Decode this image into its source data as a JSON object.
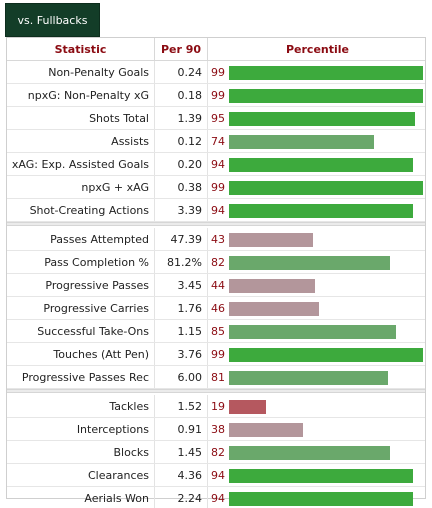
{
  "tab": {
    "label": "vs. Fullbacks"
  },
  "headers": {
    "statistic": "Statistic",
    "per90": "Per 90",
    "percentile": "Percentile"
  },
  "colors": {
    "high": "#3daa3d",
    "mid": "#6aa86b",
    "low": "#b3969b",
    "verylow": "#b5585f",
    "header_text": "#8b0b12",
    "tab_bg": "#133d28"
  },
  "groups": [
    {
      "rows": [
        {
          "stat": "Non-Penalty Goals",
          "per90": "0.24",
          "pct": "99",
          "value": 99,
          "level": "high"
        },
        {
          "stat": "npxG: Non-Penalty xG",
          "per90": "0.18",
          "pct": "99",
          "value": 99,
          "level": "high"
        },
        {
          "stat": "Shots Total",
          "per90": "1.39",
          "pct": "95",
          "value": 95,
          "level": "high"
        },
        {
          "stat": "Assists",
          "per90": "0.12",
          "pct": "74",
          "value": 74,
          "level": "mid"
        },
        {
          "stat": "xAG: Exp. Assisted Goals",
          "per90": "0.20",
          "pct": "94",
          "value": 94,
          "level": "high"
        },
        {
          "stat": "npxG + xAG",
          "per90": "0.38",
          "pct": "99",
          "value": 99,
          "level": "high"
        },
        {
          "stat": "Shot-Creating Actions",
          "per90": "3.39",
          "pct": "94",
          "value": 94,
          "level": "high"
        }
      ]
    },
    {
      "rows": [
        {
          "stat": "Passes Attempted",
          "per90": "47.39",
          "pct": "43",
          "value": 43,
          "level": "low"
        },
        {
          "stat": "Pass Completion %",
          "per90": "81.2%",
          "pct": "82",
          "value": 82,
          "level": "mid"
        },
        {
          "stat": "Progressive Passes",
          "per90": "3.45",
          "pct": "44",
          "value": 44,
          "level": "low"
        },
        {
          "stat": "Progressive Carries",
          "per90": "1.76",
          "pct": "46",
          "value": 46,
          "level": "low"
        },
        {
          "stat": "Successful Take-Ons",
          "per90": "1.15",
          "pct": "85",
          "value": 85,
          "level": "mid"
        },
        {
          "stat": "Touches (Att Pen)",
          "per90": "3.76",
          "pct": "99",
          "value": 99,
          "level": "high"
        },
        {
          "stat": "Progressive Passes Rec",
          "per90": "6.00",
          "pct": "81",
          "value": 81,
          "level": "mid"
        }
      ]
    },
    {
      "rows": [
        {
          "stat": "Tackles",
          "per90": "1.52",
          "pct": "19",
          "value": 19,
          "level": "verylow"
        },
        {
          "stat": "Interceptions",
          "per90": "0.91",
          "pct": "38",
          "value": 38,
          "level": "low"
        },
        {
          "stat": "Blocks",
          "per90": "1.45",
          "pct": "82",
          "value": 82,
          "level": "mid"
        },
        {
          "stat": "Clearances",
          "per90": "4.36",
          "pct": "94",
          "value": 94,
          "level": "high"
        },
        {
          "stat": "Aerials Won",
          "per90": "2.24",
          "pct": "94",
          "value": 94,
          "level": "high"
        }
      ]
    }
  ]
}
